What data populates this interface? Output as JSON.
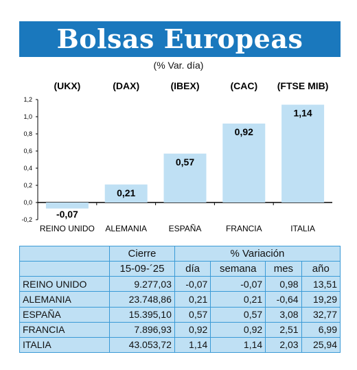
{
  "title": "Bolsas Europeas",
  "subtitle": "(% Var. día)",
  "chart_data": {
    "type": "bar",
    "title": "Bolsas Europeas",
    "subtitle": "(% Var. día)",
    "categories": [
      "REINO UNIDO",
      "ALEMANIA",
      "ESPAÑA",
      "FRANCIA",
      "ITALIA"
    ],
    "index_labels": [
      "(UKX)",
      "(DAX)",
      "(IBEX)",
      "(CAC)",
      "(FTSE MIB)"
    ],
    "values": [
      -0.07,
      0.21,
      0.57,
      0.92,
      1.14
    ],
    "value_labels": [
      "-0,07",
      "0,21",
      "0,57",
      "0,92",
      "1,14"
    ],
    "ylim": [
      -0.2,
      1.2
    ],
    "yticks": [
      "-0,2",
      "0,0",
      "0,2",
      "0,4",
      "0,6",
      "0,8",
      "1,0",
      "1,2"
    ],
    "grid": false,
    "bar_color": "#bfe0f4"
  },
  "table": {
    "header1": {
      "cierre": "Cierre",
      "variacion": "% Variación"
    },
    "header2": {
      "fecha": "15-09-´25",
      "dia": "día",
      "semana": "semana",
      "mes": "mes",
      "anio": "año"
    },
    "rows": [
      {
        "name": "REINO UNIDO",
        "cierre": "9.277,03",
        "dia": "-0,07",
        "semana": "-0,07",
        "mes": "0,98",
        "anio": "13,51"
      },
      {
        "name": "ALEMANIA",
        "cierre": "23.748,86",
        "dia": "0,21",
        "semana": "0,21",
        "mes": "-0,64",
        "anio": "19,29"
      },
      {
        "name": "ESPAÑA",
        "cierre": "15.395,10",
        "dia": "0,57",
        "semana": "0,57",
        "mes": "3,08",
        "anio": "32,77"
      },
      {
        "name": "FRANCIA",
        "cierre": "7.896,93",
        "dia": "0,92",
        "semana": "0,92",
        "mes": "2,51",
        "anio": "6,99"
      },
      {
        "name": "ITALIA",
        "cierre": "43.053,72",
        "dia": "1,14",
        "semana": "1,14",
        "mes": "2,03",
        "anio": "25,94"
      }
    ]
  },
  "colors": {
    "title_bg": "#1a78bd",
    "table_bg": "#bfe0f4",
    "table_border": "#3a9ad6"
  }
}
